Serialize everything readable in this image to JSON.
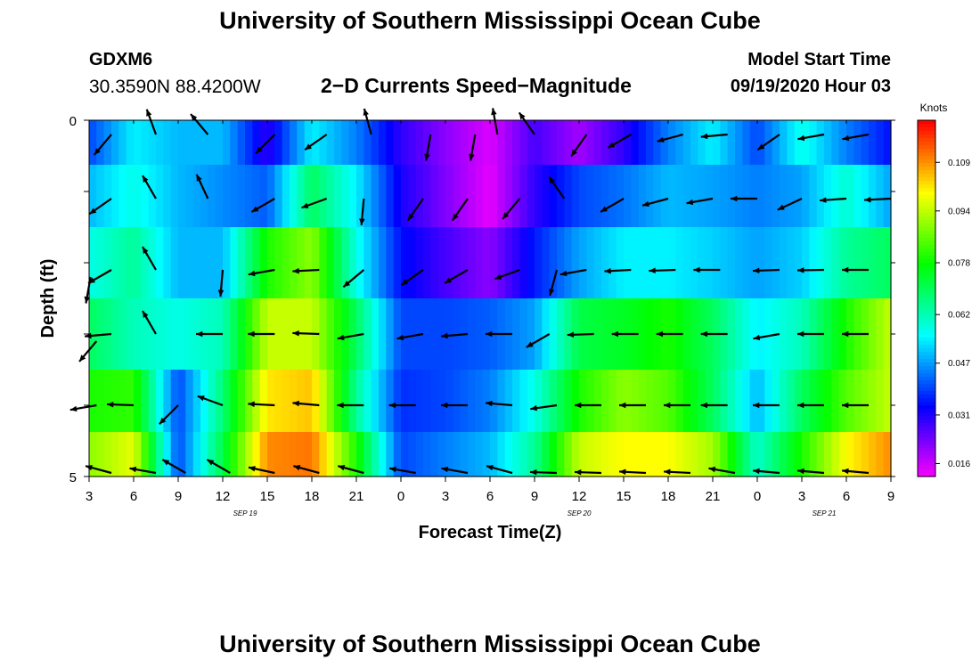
{
  "header": {
    "title": "University of Southern Mississippi Ocean Cube",
    "station_id": "GDXM6",
    "station_coords": "30.3590N 88.4200W",
    "plot_title": "2−D Currents Speed−Magnitude",
    "model_start_label": "Model Start Time",
    "model_start_value": "09/19/2020 Hour 03"
  },
  "footer": {
    "title": "University of Southern Mississippi Ocean Cube"
  },
  "chart_data": {
    "type": "heatmap",
    "title": "2−D Currents Speed−Magnitude",
    "xlabel": "Forecast Time(Z)",
    "ylabel": "Depth (ft)",
    "x_tick_labels": [
      "3",
      "6",
      "9",
      "12",
      "15",
      "18",
      "21",
      "0",
      "3",
      "6",
      "9",
      "12",
      "15",
      "18",
      "21",
      "0",
      "3",
      "6",
      "9"
    ],
    "date_labels": [
      {
        "label": "SEP 19",
        "tick_index": 3.5
      },
      {
        "label": "SEP 20",
        "tick_index": 11
      },
      {
        "label": "SEP 21",
        "tick_index": 16.5
      }
    ],
    "y_tick_labels": {
      "top": "0",
      "bottom": "5"
    },
    "ylim": [
      0,
      5
    ],
    "colorbar": {
      "unit": "Knots",
      "ticks": [
        "0.109",
        "0.094",
        "0.078",
        "0.062",
        "0.047",
        "0.031",
        "0.016"
      ],
      "range": [
        0.012,
        0.122
      ]
    },
    "hours": [
      3,
      6,
      9,
      12,
      15,
      18,
      21,
      24,
      27,
      30,
      33,
      36,
      39,
      42,
      45,
      48,
      51,
      54,
      57
    ],
    "depth_rows": [
      0.25,
      1,
      2,
      3,
      4,
      4.75
    ],
    "speed": [
      [
        0.04,
        0.055,
        0.05,
        0.05,
        0.03,
        0.055,
        0.045,
        0.03,
        0.022,
        0.015,
        0.028,
        0.02,
        0.03,
        0.045,
        0.055,
        0.04,
        0.058,
        0.045,
        0.035
      ],
      [
        0.05,
        0.058,
        0.05,
        0.046,
        0.042,
        0.07,
        0.055,
        0.032,
        0.023,
        0.014,
        0.03,
        0.04,
        0.044,
        0.05,
        0.048,
        0.045,
        0.048,
        0.06,
        0.048
      ],
      [
        0.058,
        0.065,
        0.05,
        0.05,
        0.08,
        0.09,
        0.058,
        0.035,
        0.028,
        0.022,
        0.036,
        0.048,
        0.055,
        0.055,
        0.052,
        0.048,
        0.052,
        0.065,
        0.07
      ],
      [
        0.07,
        0.062,
        0.058,
        0.062,
        0.095,
        0.095,
        0.07,
        0.04,
        0.04,
        0.042,
        0.048,
        0.072,
        0.075,
        0.08,
        0.07,
        0.055,
        0.062,
        0.08,
        0.095
      ],
      [
        0.08,
        0.082,
        0.04,
        0.068,
        0.102,
        0.105,
        0.065,
        0.038,
        0.04,
        0.045,
        0.058,
        0.08,
        0.09,
        0.085,
        0.07,
        0.05,
        0.07,
        0.085,
        0.095
      ],
      [
        0.09,
        0.098,
        0.04,
        0.072,
        0.11,
        0.112,
        0.08,
        0.04,
        0.045,
        0.05,
        0.065,
        0.095,
        0.1,
        0.1,
        0.092,
        0.06,
        0.08,
        0.1,
        0.11
      ]
    ],
    "vectors": [
      {
        "hour": 4.5,
        "depth": 0.2,
        "angle": 130
      },
      {
        "hour": 7.5,
        "depth": 0.2,
        "angle": 250
      },
      {
        "hour": 11,
        "depth": 0.2,
        "angle": 230
      },
      {
        "hour": 15.5,
        "depth": 0.2,
        "angle": 135
      },
      {
        "hour": 19,
        "depth": 0.2,
        "angle": 145
      },
      {
        "hour": 22,
        "depth": 0.2,
        "angle": 255
      },
      {
        "hour": 26,
        "depth": 0.2,
        "angle": 100
      },
      {
        "hour": 29,
        "depth": 0.2,
        "angle": 100
      },
      {
        "hour": 30.5,
        "depth": 0.2,
        "angle": 260
      },
      {
        "hour": 33,
        "depth": 0.2,
        "angle": 235
      },
      {
        "hour": 36.5,
        "depth": 0.2,
        "angle": 125
      },
      {
        "hour": 39.5,
        "depth": 0.2,
        "angle": 150
      },
      {
        "hour": 43,
        "depth": 0.2,
        "angle": 165
      },
      {
        "hour": 46,
        "depth": 0.2,
        "angle": 175
      },
      {
        "hour": 49.5,
        "depth": 0.2,
        "angle": 145
      },
      {
        "hour": 52.5,
        "depth": 0.2,
        "angle": 170
      },
      {
        "hour": 55.5,
        "depth": 0.2,
        "angle": 170
      },
      {
        "hour": 4.5,
        "depth": 1.1,
        "angle": 145
      },
      {
        "hour": 7.5,
        "depth": 1.1,
        "angle": 240
      },
      {
        "hour": 11,
        "depth": 1.1,
        "angle": 245
      },
      {
        "hour": 15.5,
        "depth": 1.1,
        "angle": 150
      },
      {
        "hour": 19,
        "depth": 1.1,
        "angle": 160
      },
      {
        "hour": 21.5,
        "depth": 1.1,
        "angle": 95
      },
      {
        "hour": 25.5,
        "depth": 1.1,
        "angle": 125
      },
      {
        "hour": 28.5,
        "depth": 1.1,
        "angle": 125
      },
      {
        "hour": 32,
        "depth": 1.1,
        "angle": 130
      },
      {
        "hour": 35,
        "depth": 1.1,
        "angle": 235
      },
      {
        "hour": 39,
        "depth": 1.1,
        "angle": 150
      },
      {
        "hour": 42,
        "depth": 1.1,
        "angle": 165
      },
      {
        "hour": 45,
        "depth": 1.1,
        "angle": 170
      },
      {
        "hour": 48,
        "depth": 1.1,
        "angle": 180
      },
      {
        "hour": 51,
        "depth": 1.1,
        "angle": 155
      },
      {
        "hour": 54,
        "depth": 1.1,
        "angle": 176
      },
      {
        "hour": 57,
        "depth": 1.1,
        "angle": 177
      },
      {
        "hour": 3.1,
        "depth": 2.2,
        "angle": 100
      },
      {
        "hour": 4.5,
        "depth": 2.1,
        "angle": 150
      },
      {
        "hour": 7.5,
        "depth": 2.1,
        "angle": 240
      },
      {
        "hour": 12,
        "depth": 2.1,
        "angle": 95
      },
      {
        "hour": 15.5,
        "depth": 2.1,
        "angle": 170
      },
      {
        "hour": 18.5,
        "depth": 2.1,
        "angle": 177
      },
      {
        "hour": 21.5,
        "depth": 2.1,
        "angle": 140
      },
      {
        "hour": 25.5,
        "depth": 2.1,
        "angle": 145
      },
      {
        "hour": 28.5,
        "depth": 2.1,
        "angle": 150
      },
      {
        "hour": 32,
        "depth": 2.1,
        "angle": 160
      },
      {
        "hour": 34.5,
        "depth": 2.1,
        "angle": 105
      },
      {
        "hour": 36.5,
        "depth": 2.1,
        "angle": 170
      },
      {
        "hour": 39.5,
        "depth": 2.1,
        "angle": 177
      },
      {
        "hour": 42.5,
        "depth": 2.1,
        "angle": 178
      },
      {
        "hour": 45.5,
        "depth": 2.1,
        "angle": 180
      },
      {
        "hour": 49.5,
        "depth": 2.1,
        "angle": 178
      },
      {
        "hour": 52.5,
        "depth": 2.1,
        "angle": 179
      },
      {
        "hour": 55.5,
        "depth": 2.1,
        "angle": 180
      },
      {
        "hour": 3.5,
        "depth": 3.1,
        "angle": 130
      },
      {
        "hour": 4.5,
        "depth": 3.0,
        "angle": 175
      },
      {
        "hour": 7.5,
        "depth": 3.0,
        "angle": 240
      },
      {
        "hour": 12,
        "depth": 3.0,
        "angle": 180
      },
      {
        "hour": 15.5,
        "depth": 3.0,
        "angle": 180
      },
      {
        "hour": 18.5,
        "depth": 3.0,
        "angle": 182
      },
      {
        "hour": 21.5,
        "depth": 3.0,
        "angle": 170
      },
      {
        "hour": 25.5,
        "depth": 3.0,
        "angle": 170
      },
      {
        "hour": 28.5,
        "depth": 3.0,
        "angle": 175
      },
      {
        "hour": 31.5,
        "depth": 3.0,
        "angle": 180
      },
      {
        "hour": 34,
        "depth": 3.0,
        "angle": 150
      },
      {
        "hour": 37,
        "depth": 3.0,
        "angle": 178
      },
      {
        "hour": 40,
        "depth": 3.0,
        "angle": 180
      },
      {
        "hour": 43,
        "depth": 3.0,
        "angle": 180
      },
      {
        "hour": 46,
        "depth": 3.0,
        "angle": 180
      },
      {
        "hour": 49.5,
        "depth": 3.0,
        "angle": 170
      },
      {
        "hour": 52.5,
        "depth": 3.0,
        "angle": 180
      },
      {
        "hour": 55.5,
        "depth": 3.0,
        "angle": 180
      },
      {
        "hour": 3.5,
        "depth": 4.0,
        "angle": 170
      },
      {
        "hour": 6,
        "depth": 4.0,
        "angle": 182
      },
      {
        "hour": 9,
        "depth": 4.0,
        "angle": 135
      },
      {
        "hour": 12,
        "depth": 4.0,
        "angle": 200
      },
      {
        "hour": 15.5,
        "depth": 4.0,
        "angle": 183
      },
      {
        "hour": 18.5,
        "depth": 4.0,
        "angle": 185
      },
      {
        "hour": 21.5,
        "depth": 4.0,
        "angle": 180
      },
      {
        "hour": 25,
        "depth": 4.0,
        "angle": 180
      },
      {
        "hour": 28.5,
        "depth": 4.0,
        "angle": 180
      },
      {
        "hour": 31.5,
        "depth": 4.0,
        "angle": 185
      },
      {
        "hour": 34.5,
        "depth": 4.0,
        "angle": 172
      },
      {
        "hour": 37.5,
        "depth": 4.0,
        "angle": 180
      },
      {
        "hour": 40.5,
        "depth": 4.0,
        "angle": 180
      },
      {
        "hour": 43.5,
        "depth": 4.0,
        "angle": 180
      },
      {
        "hour": 46,
        "depth": 4.0,
        "angle": 180
      },
      {
        "hour": 49.5,
        "depth": 4.0,
        "angle": 180
      },
      {
        "hour": 52.5,
        "depth": 4.0,
        "angle": 180
      },
      {
        "hour": 55.5,
        "depth": 4.0,
        "angle": 180
      },
      {
        "hour": 4.5,
        "depth": 4.95,
        "angle": 195
      },
      {
        "hour": 7.5,
        "depth": 4.95,
        "angle": 190
      },
      {
        "hour": 9.5,
        "depth": 4.95,
        "angle": 210
      },
      {
        "hour": 12.5,
        "depth": 4.95,
        "angle": 210
      },
      {
        "hour": 15.5,
        "depth": 4.95,
        "angle": 192
      },
      {
        "hour": 18.5,
        "depth": 4.95,
        "angle": 195
      },
      {
        "hour": 21.5,
        "depth": 4.95,
        "angle": 195
      },
      {
        "hour": 25,
        "depth": 4.95,
        "angle": 190
      },
      {
        "hour": 28.5,
        "depth": 4.95,
        "angle": 190
      },
      {
        "hour": 31.5,
        "depth": 4.95,
        "angle": 195
      },
      {
        "hour": 34.5,
        "depth": 4.95,
        "angle": 182
      },
      {
        "hour": 37.5,
        "depth": 4.95,
        "angle": 182
      },
      {
        "hour": 40.5,
        "depth": 4.95,
        "angle": 183
      },
      {
        "hour": 43.5,
        "depth": 4.95,
        "angle": 183
      },
      {
        "hour": 46.5,
        "depth": 4.95,
        "angle": 190
      },
      {
        "hour": 49.5,
        "depth": 4.95,
        "angle": 185
      },
      {
        "hour": 52.5,
        "depth": 4.95,
        "angle": 185
      },
      {
        "hour": 55.5,
        "depth": 4.95,
        "angle": 185
      }
    ]
  }
}
